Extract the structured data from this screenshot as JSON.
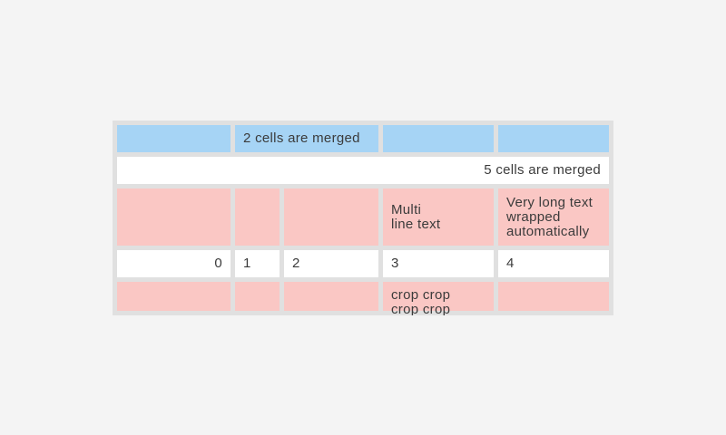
{
  "page": {
    "background_color": "#f4f4f4"
  },
  "table": {
    "widget": "lvgl-table-demo",
    "colors": {
      "frame_gray": "#e0e0e0",
      "row_blue": "#a6d4f5",
      "row_pink": "#fac7c4",
      "row_white": "#ffffff",
      "text": "#3b3b3b"
    },
    "columns": 5,
    "rows": [
      {
        "style": "blue",
        "cells": [
          {
            "text": "",
            "col": 1
          },
          {
            "text": "2 cells are merged",
            "col": 2,
            "colspan": 2,
            "align": "left"
          },
          {
            "text": "",
            "col": 4
          },
          {
            "text": "",
            "col": 5
          }
        ]
      },
      {
        "style": "white",
        "cells": [
          {
            "text": "5 cells are merged",
            "col": 1,
            "colspan": 5,
            "align": "right"
          }
        ]
      },
      {
        "style": "pink",
        "cells": [
          {
            "text": "",
            "col": 1
          },
          {
            "text": "",
            "col": 2
          },
          {
            "text": "",
            "col": 3
          },
          {
            "text": "Multi\nline text",
            "col": 4,
            "align": "left"
          },
          {
            "text": "Very long text\nwrapped\nautomatically",
            "col": 5,
            "align": "left"
          }
        ]
      },
      {
        "style": "white",
        "cells": [
          {
            "text": "0",
            "col": 1,
            "align": "right"
          },
          {
            "text": "1",
            "col": 2,
            "align": "left"
          },
          {
            "text": "2",
            "col": 3,
            "align": "left"
          },
          {
            "text": "3",
            "col": 4,
            "align": "left"
          },
          {
            "text": "4",
            "col": 5,
            "align": "left"
          }
        ]
      },
      {
        "style": "pink-cropped",
        "cells": [
          {
            "text": "",
            "col": 1
          },
          {
            "text": "",
            "col": 2
          },
          {
            "text": "",
            "col": 3
          },
          {
            "text": "crop crop\ncrop crop",
            "col": 4,
            "align": "left",
            "note_visible": "second line clipped by widget bottom edge"
          },
          {
            "text": "",
            "col": 5
          }
        ]
      }
    ]
  }
}
